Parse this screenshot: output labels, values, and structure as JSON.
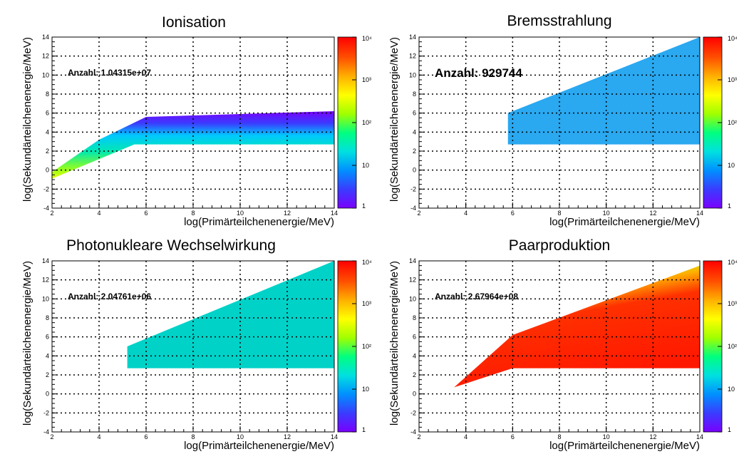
{
  "chart_data": [
    {
      "type": "heatmap",
      "title": "Ionisation",
      "xlabel": "log(Primärteilchenenergie/MeV)",
      "ylabel": "log(Sekundärteilchenenergie/MeV)",
      "annotation": "Anzahl: 1.04315e+07",
      "xlim": [
        2,
        14
      ],
      "ylim": [
        -4,
        14
      ],
      "x_ticks": [
        2,
        4,
        6,
        8,
        10,
        12,
        14
      ],
      "y_ticks": [
        -4,
        -2,
        0,
        2,
        4,
        6,
        8,
        10,
        12,
        14
      ],
      "z_scale": "log",
      "zlim": [
        1,
        10000
      ],
      "z_tick_labels": [
        "1",
        "10",
        "10²",
        "10³",
        "10⁴"
      ],
      "grid": true,
      "colormap": [
        "#7a00ff",
        "#3a3cff",
        "#0090ff",
        "#00e0e0",
        "#00ff80",
        "#a0ff00",
        "#ffff00",
        "#ffb000",
        "#ff5000",
        "#ff0000"
      ],
      "band": {
        "upper": [
          [
            2,
            -0.2
          ],
          [
            4,
            3.2
          ],
          [
            6,
            5.6
          ],
          [
            14,
            6.2
          ]
        ],
        "lower": [
          [
            2,
            -0.9
          ],
          [
            5.5,
            2.7
          ],
          [
            14,
            2.7
          ]
        ]
      }
    },
    {
      "type": "heatmap",
      "title": "Bremsstrahlung",
      "xlabel": "log(Primärteilchenenergie/MeV)",
      "ylabel": "log(Sekundärteilchenenergie/MeV)",
      "annotation": "Anzahl: 929744",
      "xlim": [
        2,
        14
      ],
      "ylim": [
        -4,
        14
      ],
      "x_ticks": [
        2,
        4,
        6,
        8,
        10,
        12,
        14
      ],
      "y_ticks": [
        -4,
        -2,
        0,
        2,
        4,
        6,
        8,
        10,
        12,
        14
      ],
      "z_scale": "log",
      "zlim": [
        1,
        10000
      ],
      "z_tick_labels": [
        "1",
        "10",
        "10²",
        "10³",
        "10⁴"
      ],
      "grid": true,
      "colormap": [
        "#7a00ff",
        "#3a3cff",
        "#0090ff",
        "#00e0e0",
        "#00ff80",
        "#a0ff00",
        "#ffff00",
        "#ffb000",
        "#ff5000",
        "#ff0000"
      ],
      "region": [
        [
          5.8,
          2.7
        ],
        [
          14,
          2.7
        ],
        [
          14,
          14
        ],
        [
          5.8,
          6.0
        ]
      ]
    },
    {
      "type": "heatmap",
      "title": "Photonukleare Wechselwirkung",
      "xlabel": "log(Primärteilchenenergie/MeV)",
      "ylabel": "log(Sekundärteilchenenergie/MeV)",
      "annotation": "Anzahl: 2.04761e+06",
      "xlim": [
        2,
        14
      ],
      "ylim": [
        -4,
        14
      ],
      "x_ticks": [
        2,
        4,
        6,
        8,
        10,
        12,
        14
      ],
      "y_ticks": [
        -4,
        -2,
        0,
        2,
        4,
        6,
        8,
        10,
        12,
        14
      ],
      "z_scale": "log",
      "zlim": [
        1,
        10000
      ],
      "z_tick_labels": [
        "1",
        "10",
        "10²",
        "10³",
        "10⁴"
      ],
      "grid": true,
      "colormap": [
        "#7a00ff",
        "#3a3cff",
        "#0090ff",
        "#00e0e0",
        "#00ff80",
        "#a0ff00",
        "#ffff00",
        "#ffb000",
        "#ff5000",
        "#ff0000"
      ],
      "region": [
        [
          5.2,
          2.7
        ],
        [
          14,
          2.7
        ],
        [
          14,
          14
        ],
        [
          5.2,
          5.0
        ]
      ]
    },
    {
      "type": "heatmap",
      "title": "Paarproduktion",
      "xlabel": "log(Primärteilchenenergie/MeV)",
      "ylabel": "log(Sekundärteilchenenergie/MeV)",
      "annotation": "Anzahl: 2.67964e+08",
      "xlim": [
        2,
        14
      ],
      "ylim": [
        -4,
        14
      ],
      "x_ticks": [
        2,
        4,
        6,
        8,
        10,
        12,
        14
      ],
      "y_ticks": [
        -4,
        -2,
        0,
        2,
        4,
        6,
        8,
        10,
        12,
        14
      ],
      "z_scale": "log",
      "zlim": [
        1,
        10000
      ],
      "z_tick_labels": [
        "1",
        "10",
        "10²",
        "10³",
        "10⁴"
      ],
      "grid": true,
      "colormap": [
        "#7a00ff",
        "#3a3cff",
        "#0090ff",
        "#00e0e0",
        "#00ff80",
        "#a0ff00",
        "#ffff00",
        "#ffb000",
        "#ff5000",
        "#ff0000"
      ],
      "region": [
        [
          3.5,
          0.7
        ],
        [
          6,
          2.7
        ],
        [
          14,
          2.7
        ],
        [
          14,
          13.5
        ],
        [
          6,
          6.2
        ]
      ]
    }
  ]
}
